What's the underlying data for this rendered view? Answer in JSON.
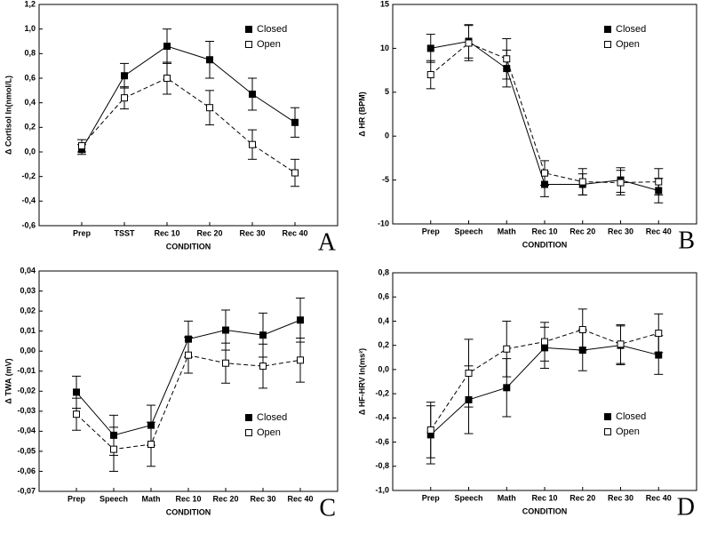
{
  "chart_data": [
    {
      "type": "line",
      "panel": "A",
      "y_label": "Δ Cortisol ln(nmol/L)",
      "x_label": "CONDITION",
      "categories": [
        "Prep",
        "TSST",
        "Rec 10",
        "Rec 20",
        "Rec 30",
        "Rec 40"
      ],
      "ylim": [
        -0.6,
        1.2
      ],
      "yticks": [
        {
          "value": -0.6,
          "label": "-0,6"
        },
        {
          "value": -0.4,
          "label": "-0,4"
        },
        {
          "value": -0.2,
          "label": "-0,2"
        },
        {
          "value": 0,
          "label": "0,0"
        },
        {
          "value": 0.2,
          "label": "0,2"
        },
        {
          "value": 0.4,
          "label": "0,4"
        },
        {
          "value": 0.6,
          "label": "0,6"
        },
        {
          "value": 0.8,
          "label": "0,8"
        },
        {
          "value": 1.0,
          "label": "1,0"
        },
        {
          "value": 1.2,
          "label": "1,2"
        }
      ],
      "grid": false,
      "legend": "upper right",
      "series": [
        {
          "name": "Closed",
          "color": "#000000",
          "dashed": false,
          "marker": "filled",
          "values": [
            0.02,
            0.62,
            0.86,
            0.75,
            0.47,
            0.24
          ],
          "errors": [
            0.04,
            0.1,
            0.14,
            0.15,
            0.13,
            0.12
          ]
        },
        {
          "name": "Open",
          "color": "#000000",
          "dashed": true,
          "marker": "open",
          "values": [
            0.05,
            0.44,
            0.6,
            0.36,
            0.06,
            -0.17
          ],
          "errors": [
            0.05,
            0.09,
            0.13,
            0.14,
            0.12,
            0.11
          ]
        }
      ]
    },
    {
      "type": "line",
      "panel": "B",
      "y_label": "Δ HR (BPM)",
      "x_label": "CONDITION",
      "categories": [
        "Prep",
        "Speech",
        "Math",
        "Rec 10",
        "Rec 20",
        "Rec 30",
        "Rec 40"
      ],
      "ylim": [
        -10,
        15
      ],
      "yticks": [
        -10,
        -5,
        0,
        5,
        10,
        15
      ],
      "grid": false,
      "legend": "upper right",
      "series": [
        {
          "name": "Closed",
          "color": "#000000",
          "dashed": false,
          "marker": "filled",
          "values": [
            10.0,
            10.8,
            7.7,
            -5.5,
            -5.5,
            -5.0,
            -6.2
          ],
          "errors": [
            1.6,
            1.9,
            2.1,
            1.4,
            1.2,
            1.4,
            1.4
          ]
        },
        {
          "name": "Open",
          "color": "#000000",
          "dashed": true,
          "marker": "open",
          "values": [
            7.0,
            10.6,
            8.8,
            -4.2,
            -5.2,
            -5.3,
            -5.2
          ],
          "errors": [
            1.6,
            2.0,
            2.3,
            1.4,
            1.5,
            1.4,
            1.5
          ]
        }
      ]
    },
    {
      "type": "line",
      "panel": "C",
      "y_label": "Δ TWA (mV)",
      "x_label": "CONDITION",
      "categories": [
        "Prep",
        "Speech",
        "Math",
        "Rec 10",
        "Rec 20",
        "Rec 30",
        "Rec 40"
      ],
      "ylim": [
        -0.07,
        0.04
      ],
      "yticks": [
        {
          "value": -0.07,
          "label": "-0,07"
        },
        {
          "value": -0.06,
          "label": "-0,06"
        },
        {
          "value": -0.05,
          "label": "-0,05"
        },
        {
          "value": -0.04,
          "label": "-0,04"
        },
        {
          "value": -0.03,
          "label": "-0,03"
        },
        {
          "value": -0.02,
          "label": "-0,02"
        },
        {
          "value": -0.01,
          "label": "-0,01"
        },
        {
          "value": 0,
          "label": "0,00"
        },
        {
          "value": 0.01,
          "label": "0,01"
        },
        {
          "value": 0.02,
          "label": "0,02"
        },
        {
          "value": 0.03,
          "label": "0,03"
        },
        {
          "value": 0.04,
          "label": "0,04"
        }
      ],
      "grid": false,
      "legend": "lower right",
      "series": [
        {
          "name": "Closed",
          "color": "#000000",
          "dashed": false,
          "marker": "filled",
          "values": [
            -0.0205,
            -0.042,
            -0.037,
            0.006,
            0.0105,
            0.008,
            0.0155
          ],
          "errors": [
            0.008,
            0.01,
            0.01,
            0.009,
            0.01,
            0.011,
            0.011
          ]
        },
        {
          "name": "Open",
          "color": "#000000",
          "dashed": true,
          "marker": "open",
          "values": [
            -0.0315,
            -0.049,
            -0.0465,
            -0.002,
            -0.006,
            -0.0075,
            -0.0045
          ],
          "errors": [
            0.008,
            0.011,
            0.011,
            0.009,
            0.01,
            0.011,
            0.011
          ]
        }
      ]
    },
    {
      "type": "line",
      "panel": "D",
      "y_label": "Δ HF-HRV ln(ms²)",
      "x_label": "CONDITION",
      "categories": [
        "Prep",
        "Speech",
        "Math",
        "Rec 10",
        "Rec 20",
        "Rec 30",
        "Rec 40"
      ],
      "ylim": [
        -1.0,
        0.8
      ],
      "yticks": [
        {
          "value": -1.0,
          "label": "-1,0"
        },
        {
          "value": -0.8,
          "label": "-0,8"
        },
        {
          "value": -0.6,
          "label": "-0,6"
        },
        {
          "value": -0.4,
          "label": "-0,4"
        },
        {
          "value": -0.2,
          "label": "-0,2"
        },
        {
          "value": 0,
          "label": "0,0"
        },
        {
          "value": 0.2,
          "label": "0,2"
        },
        {
          "value": 0.4,
          "label": "0,4"
        },
        {
          "value": 0.6,
          "label": "0,6"
        },
        {
          "value": 0.8,
          "label": "0,8"
        }
      ],
      "grid": false,
      "legend": "lower right",
      "series": [
        {
          "name": "Closed",
          "color": "#000000",
          "dashed": false,
          "marker": "filled",
          "values": [
            -0.54,
            -0.25,
            -0.15,
            0.18,
            0.16,
            0.2,
            0.12
          ],
          "errors": [
            0.24,
            0.28,
            0.24,
            0.17,
            0.17,
            0.16,
            0.16
          ]
        },
        {
          "name": "Open",
          "color": "#000000",
          "dashed": true,
          "marker": "open",
          "values": [
            -0.5,
            -0.03,
            0.17,
            0.23,
            0.33,
            0.21,
            0.3
          ],
          "errors": [
            0.23,
            0.28,
            0.23,
            0.16,
            0.17,
            0.16,
            0.16
          ]
        }
      ]
    }
  ]
}
